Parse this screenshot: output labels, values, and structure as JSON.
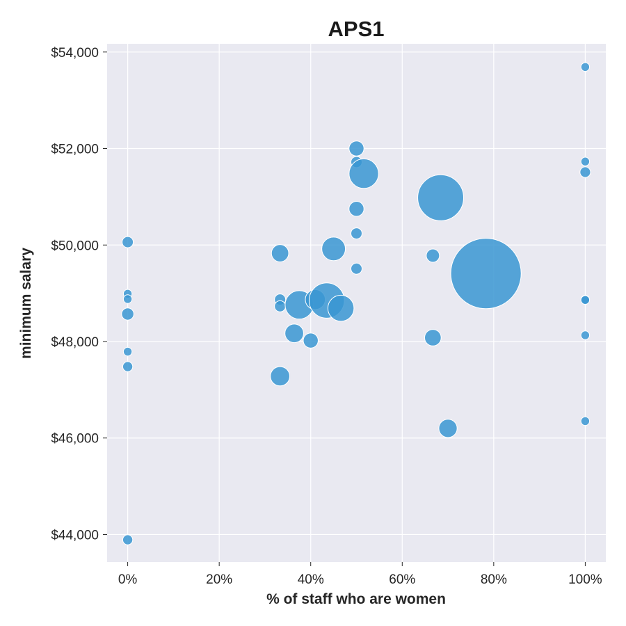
{
  "chart_data": {
    "type": "scatter",
    "title": "APS1",
    "xlabel": "% of staff who are women",
    "ylabel": "minimum salary",
    "xlim": [
      -0.045,
      1.045
    ],
    "ylim": [
      43430,
      54170
    ],
    "x_ticks": [
      0,
      0.2,
      0.4,
      0.6,
      0.8,
      1.0
    ],
    "x_tick_labels": [
      "0%",
      "20%",
      "40%",
      "60%",
      "80%",
      "100%"
    ],
    "y_ticks": [
      44000,
      46000,
      48000,
      50000,
      52000,
      54000
    ],
    "y_tick_labels": [
      "$44,000",
      "$46,000",
      "$48,000",
      "$50,000",
      "$52,000",
      "$54,000"
    ],
    "grid": true,
    "background": "#e9e9f1",
    "marker_color": "#3a97d2",
    "marker_edge": "#ffffff",
    "marker_size_note": "bubble area proportional to relative size value",
    "points": [
      {
        "x": 0.0,
        "y": 50060,
        "size": 1
      },
      {
        "x": 0.0,
        "y": 48990,
        "size": 0.6
      },
      {
        "x": 0.0,
        "y": 48880,
        "size": 0.6
      },
      {
        "x": 0.0,
        "y": 48570,
        "size": 1.2
      },
      {
        "x": 0.0,
        "y": 47790,
        "size": 0.6
      },
      {
        "x": 0.0,
        "y": 47480,
        "size": 0.8
      },
      {
        "x": 0.0,
        "y": 43890,
        "size": 0.8
      },
      {
        "x": 0.333,
        "y": 49830,
        "size": 2.4
      },
      {
        "x": 0.333,
        "y": 48870,
        "size": 1
      },
      {
        "x": 0.333,
        "y": 48730,
        "size": 1
      },
      {
        "x": 0.333,
        "y": 47280,
        "size": 3
      },
      {
        "x": 0.364,
        "y": 48170,
        "size": 2.8
      },
      {
        "x": 0.375,
        "y": 48760,
        "size": 6.5
      },
      {
        "x": 0.4,
        "y": 48020,
        "size": 1.8
      },
      {
        "x": 0.41,
        "y": 48870,
        "size": 3.2
      },
      {
        "x": 0.435,
        "y": 48850,
        "size": 10
      },
      {
        "x": 0.45,
        "y": 49920,
        "size": 4.5
      },
      {
        "x": 0.466,
        "y": 48690,
        "size": 5.5
      },
      {
        "x": 0.5,
        "y": 52000,
        "size": 1.8
      },
      {
        "x": 0.5,
        "y": 51720,
        "size": 1
      },
      {
        "x": 0.5,
        "y": 50750,
        "size": 1.8
      },
      {
        "x": 0.5,
        "y": 50240,
        "size": 1
      },
      {
        "x": 0.5,
        "y": 49510,
        "size": 1
      },
      {
        "x": 0.516,
        "y": 51480,
        "size": 7
      },
      {
        "x": 0.667,
        "y": 49780,
        "size": 1.4
      },
      {
        "x": 0.667,
        "y": 48080,
        "size": 2.2
      },
      {
        "x": 0.684,
        "y": 50980,
        "size": 17
      },
      {
        "x": 0.7,
        "y": 46200,
        "size": 2.7
      },
      {
        "x": 0.783,
        "y": 49410,
        "size": 40
      },
      {
        "x": 1.0,
        "y": 53690,
        "size": 0.6
      },
      {
        "x": 1.0,
        "y": 51730,
        "size": 0.6
      },
      {
        "x": 1.0,
        "y": 51510,
        "size": 0.9
      },
      {
        "x": 1.0,
        "y": 48870,
        "size": 0.6
      },
      {
        "x": 1.0,
        "y": 48860,
        "size": 0.6
      },
      {
        "x": 1.0,
        "y": 48130,
        "size": 0.6
      },
      {
        "x": 1.0,
        "y": 46350,
        "size": 0.6
      }
    ]
  }
}
